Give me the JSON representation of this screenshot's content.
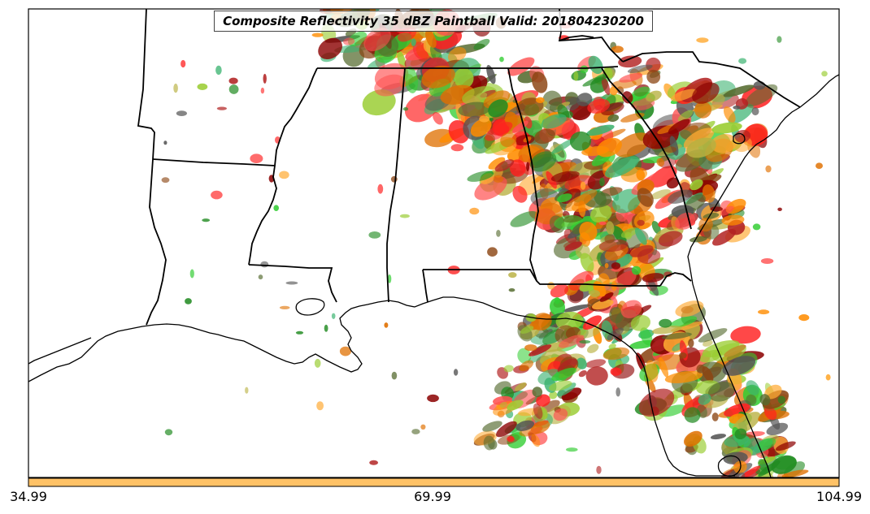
{
  "title": "Composite Reflectivity 35 dBZ Paintball Valid: 201804230200",
  "colorbar": {
    "color": "#FFC266",
    "ticks": [
      "34.99",
      "69.99",
      "104.99"
    ]
  },
  "colors": {
    "ensemble_members": [
      "#FF2020",
      "#E07000",
      "#FF8C00",
      "#FFAA33",
      "#8B0000",
      "#B22222",
      "#228B22",
      "#3CB371",
      "#32CD32",
      "#556B2F",
      "#9ACD32",
      "#B8B040",
      "#555555",
      "#8B4513",
      "#FF5050"
    ]
  },
  "map": {
    "region": "Southeastern United States",
    "features": [
      "state-borders",
      "coastline"
    ]
  }
}
